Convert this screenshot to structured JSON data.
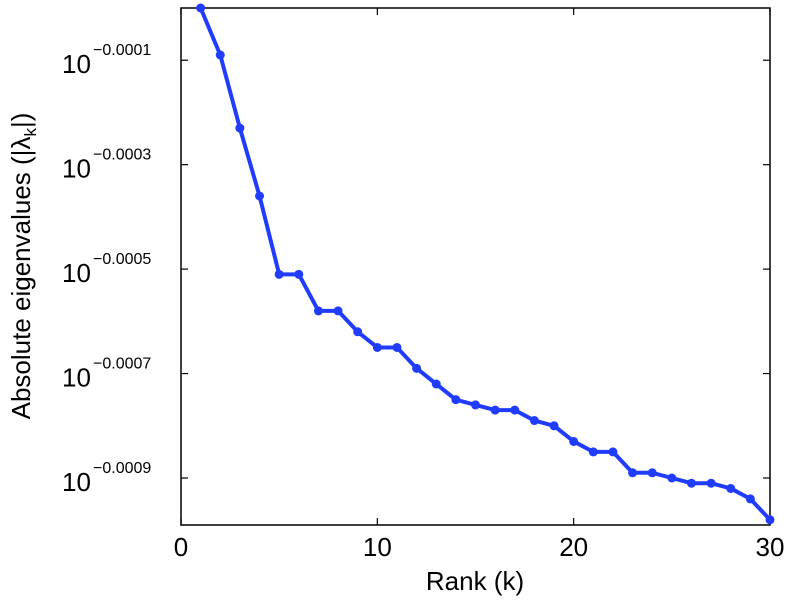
{
  "colors": {
    "series": "#1f3cff",
    "axis": "#000000",
    "background": "#ffffff"
  },
  "chart_data": {
    "type": "line",
    "title": "",
    "xlabel": "Rank (k)",
    "ylabel_main": "Absolute eigenvalues (|λ",
    "ylabel_sub": "k",
    "ylabel_end": "|)",
    "xlim": [
      0,
      30
    ],
    "ylim_exponent": [
      -0.00099,
      0.0
    ],
    "y_scale": "log",
    "grid": false,
    "legend": "none",
    "x_ticks": [
      {
        "value": 0,
        "label": "0"
      },
      {
        "value": 10,
        "label": "10"
      },
      {
        "value": 20,
        "label": "20"
      },
      {
        "value": 30,
        "label": "30"
      }
    ],
    "y_ticks": [
      {
        "exponent": -0.0001,
        "base": "10",
        "exp_label": "−0.0001"
      },
      {
        "exponent": -0.0003,
        "base": "10",
        "exp_label": "−0.0003"
      },
      {
        "exponent": -0.0005,
        "base": "10",
        "exp_label": "−0.0005"
      },
      {
        "exponent": -0.0007,
        "base": "10",
        "exp_label": "−0.0007"
      },
      {
        "exponent": -0.0009,
        "base": "10",
        "exp_label": "−0.0009"
      }
    ],
    "x": [
      1,
      2,
      3,
      4,
      5,
      6,
      7,
      8,
      9,
      10,
      11,
      12,
      13,
      14,
      15,
      16,
      17,
      18,
      19,
      20,
      21,
      22,
      23,
      24,
      25,
      26,
      27,
      28,
      29,
      30
    ],
    "log10_values": [
      -0.0,
      -9e-05,
      -0.00023,
      -0.00036,
      -0.00051,
      -0.00051,
      -0.00058,
      -0.00058,
      -0.00062,
      -0.00065,
      -0.00065,
      -0.00069,
      -0.00072,
      -0.00075,
      -0.00076,
      -0.00077,
      -0.00077,
      -0.00079,
      -0.0008,
      -0.00083,
      -0.00085,
      -0.00085,
      -0.00089,
      -0.00089,
      -0.0009,
      -0.00091,
      -0.00091,
      -0.00092,
      -0.00094,
      -0.00098
    ]
  }
}
